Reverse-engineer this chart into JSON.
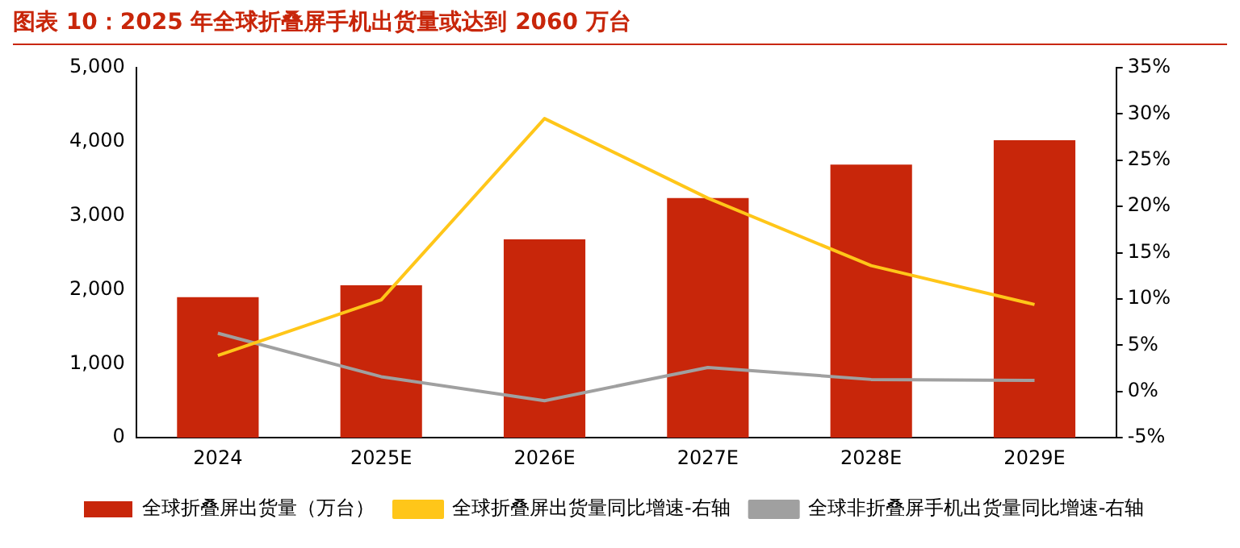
{
  "chart_data": {
    "type": "bar",
    "title": "图表 10：2025 年全球折叠屏手机出货量或达到 2060 万台",
    "categories": [
      "2024",
      "2025E",
      "2026E",
      "2027E",
      "2028E",
      "2029E"
    ],
    "series": [
      {
        "name": "全球折叠屏出货量（万台）",
        "color": "#c8260a",
        "values": [
          1900,
          2060,
          2680,
          3240,
          3690,
          4020
        ]
      },
      {
        "name": "全球折叠屏出货量同比增速-右轴",
        "type": "line",
        "axis": "y2",
        "color": "#ffc619",
        "values": [
          3.9,
          9.9,
          29.5,
          20.9,
          13.6,
          9.4
        ]
      },
      {
        "name": "全球非折叠屏手机出货量同比增速-右轴",
        "type": "line",
        "axis": "y2",
        "color": "#a0a0a0",
        "values": [
          6.3,
          1.6,
          -1.0,
          2.6,
          1.3,
          1.2
        ]
      }
    ],
    "ylim": [
      0,
      5000
    ],
    "yticks": [
      0,
      {
        "value": 1000,
        "label": "1,000"
      },
      {
        "value": 2000,
        "label": "2,000"
      },
      {
        "value": 3000,
        "label": "3,000"
      },
      {
        "value": 4000,
        "label": "4,000"
      },
      {
        "value": 5000,
        "label": "5,000"
      }
    ],
    "y2lim": [
      -5,
      35
    ],
    "y2ticks": [
      {
        "value": -5,
        "label": "-5%"
      },
      {
        "value": 0,
        "label": "0%"
      },
      {
        "value": 5,
        "label": "5%"
      },
      {
        "value": 10,
        "label": "10%"
      },
      {
        "value": 15,
        "label": "15%"
      },
      {
        "value": 20,
        "label": "20%"
      },
      {
        "value": 25,
        "label": "25%"
      },
      {
        "value": 30,
        "label": "30%"
      },
      {
        "value": 35,
        "label": "35%"
      }
    ],
    "legend": "bottom",
    "marker": "none"
  }
}
